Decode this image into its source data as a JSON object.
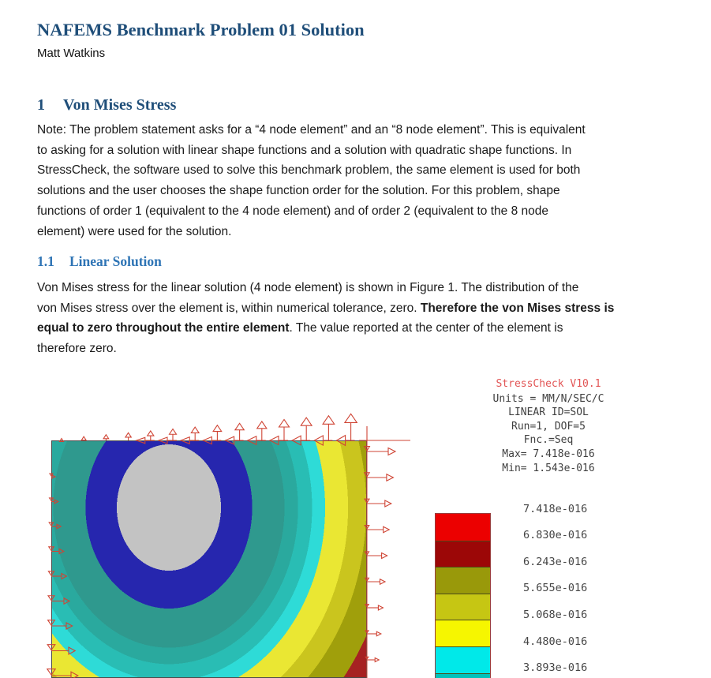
{
  "document": {
    "title": "NAFEMS Benchmark Problem 01 Solution",
    "author": "Matt Watkins",
    "section1": {
      "number": "1",
      "title": "Von Mises Stress",
      "body": "Note: The problem statement asks for a “4 node element” and an “8 node element”. This is equivalent\nto asking for a solution with linear shape functions and a solution with quadratic shape functions. In\nStressCheck, the software used to solve this benchmark problem, the same element is used for both\nsolutions and the user chooses the shape function order for the solution. For this problem, shape\nfunctions of order 1 (equivalent to the 4 node element) and of order 2 (equivalent to the 8 node\nelement) were used for the solution."
    },
    "section11": {
      "number": "1.1",
      "title": "Linear Solution",
      "body_before_bold": "Von Mises stress for the linear solution (4 node element) is shown in Figure 1. The distribution of the\nvon Mises stress over the element is, within numerical tolerance, zero. ",
      "body_bold": "Therefore the von Mises stress is\nequal to zero throughout the entire element",
      "body_after_bold": ". The value reported at the center of the element is\ntherefore zero."
    }
  },
  "figure": {
    "header": {
      "app_version": "StressCheck V10.1",
      "lines": [
        "Units = MM/N/SEC/C",
        "LINEAR ID=SOL",
        "Run=1, DOF=5",
        "Fnc.=Seq",
        "Max= 7.418e-016",
        "Min= 1.543e-016"
      ]
    },
    "legend": {
      "labels": [
        "7.418e-016",
        "6.830e-016",
        "6.243e-016",
        "5.655e-016",
        "5.068e-016",
        "4.480e-016",
        "3.893e-016"
      ],
      "colors": [
        "#ec0000",
        "#9c0707",
        "#99990a",
        "#c6c613",
        "#f6f600",
        "#00e9e9",
        "#00c3ba"
      ]
    },
    "contour": {
      "band_colors": [
        "#c3c3c3",
        "#2626ae",
        "#2f998e",
        "#2aa99e",
        "#29bdb4",
        "#2edbd7",
        "#eae733",
        "#cac51e",
        "#a09f0b",
        "#a62222",
        "#e51212"
      ],
      "arrow_color": "#cf4434"
    }
  },
  "colors": {
    "title_heading": "#1f4e79",
    "subheading": "#2e74b5",
    "version_text": "#e25555"
  }
}
